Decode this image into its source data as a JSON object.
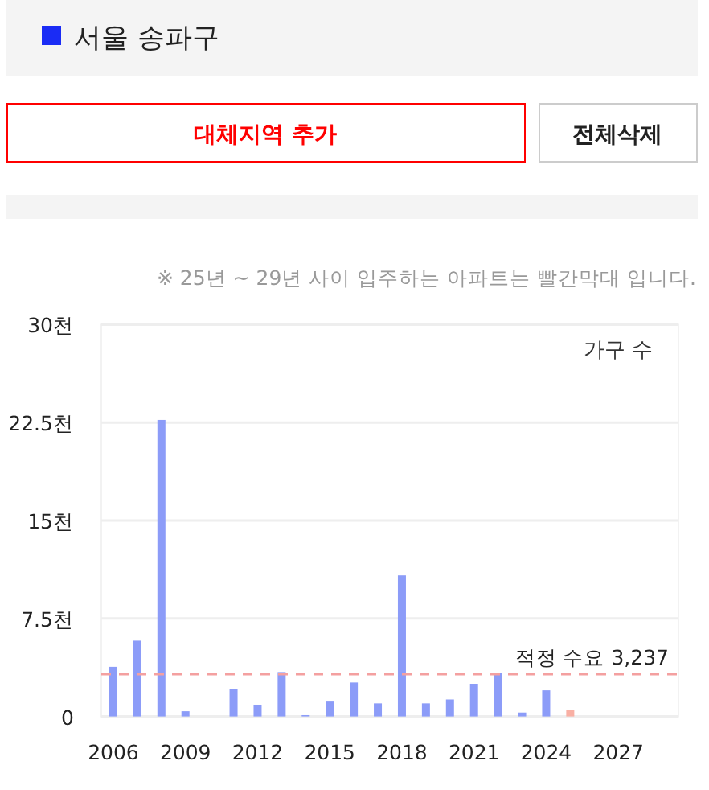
{
  "chart_data": [
    {
      "type": "other",
      "annotations": [
        "서울 송파구",
        "대체지역 추가",
        "전체삭제"
      ]
    },
    {
      "type": "bar",
      "subtitle": "※ 25년 ~ 29년 사이 입주하는 아파트는 빨간막대 입니다.",
      "annotations": [
        "가구 수"
      ],
      "categories": [
        "2006",
        null,
        null,
        "2009",
        null,
        null,
        "2012",
        null,
        null,
        "2015",
        null,
        null,
        "2018",
        null,
        null,
        "2021",
        null,
        null,
        "2024",
        null,
        null,
        "2027",
        null,
        null
      ],
      "values": [
        3.8,
        5.8,
        22.7,
        0.4,
        0,
        2.1,
        0.9,
        3.4,
        0.1,
        1.2,
        2.6,
        1.0,
        10.8,
        1.0,
        1.3,
        2.5,
        3.3,
        0.3,
        2.0,
        0.5,
        null,
        null,
        null,
        null
      ],
      "colors": [
        "#8c9cf8",
        "#8c9cf8",
        "#8c9cf8",
        "#8c9cf8",
        "#8c9cf8",
        "#8c9cf8",
        "#8c9cf8",
        "#8c9cf8",
        "#8c9cf8",
        "#8c9cf8",
        "#8c9cf8",
        "#8c9cf8",
        "#8c9cf8",
        "#8c9cf8",
        "#8c9cf8",
        "#8c9cf8",
        "#8c9cf8",
        "#8c9cf8",
        "#8c9cf8",
        "#f9b0a4",
        null,
        null,
        null,
        null
      ],
      "ylim": [
        0,
        30
      ],
      "yticks": [
        {
          "value": 0,
          "label": "0"
        },
        {
          "value": 7.5,
          "label": "7.5천"
        },
        {
          "value": 15,
          "label": "15천"
        },
        {
          "value": 22.5,
          "label": "22.5천"
        },
        {
          "value": 30,
          "label": "30천"
        }
      ],
      "grid": "y",
      "ref_lines": [
        {
          "axis": "y",
          "value": 3.237,
          "label": "적정 수요 3,237",
          "color": "#f4a0a0",
          "line_style": "dashed"
        }
      ]
    }
  ]
}
